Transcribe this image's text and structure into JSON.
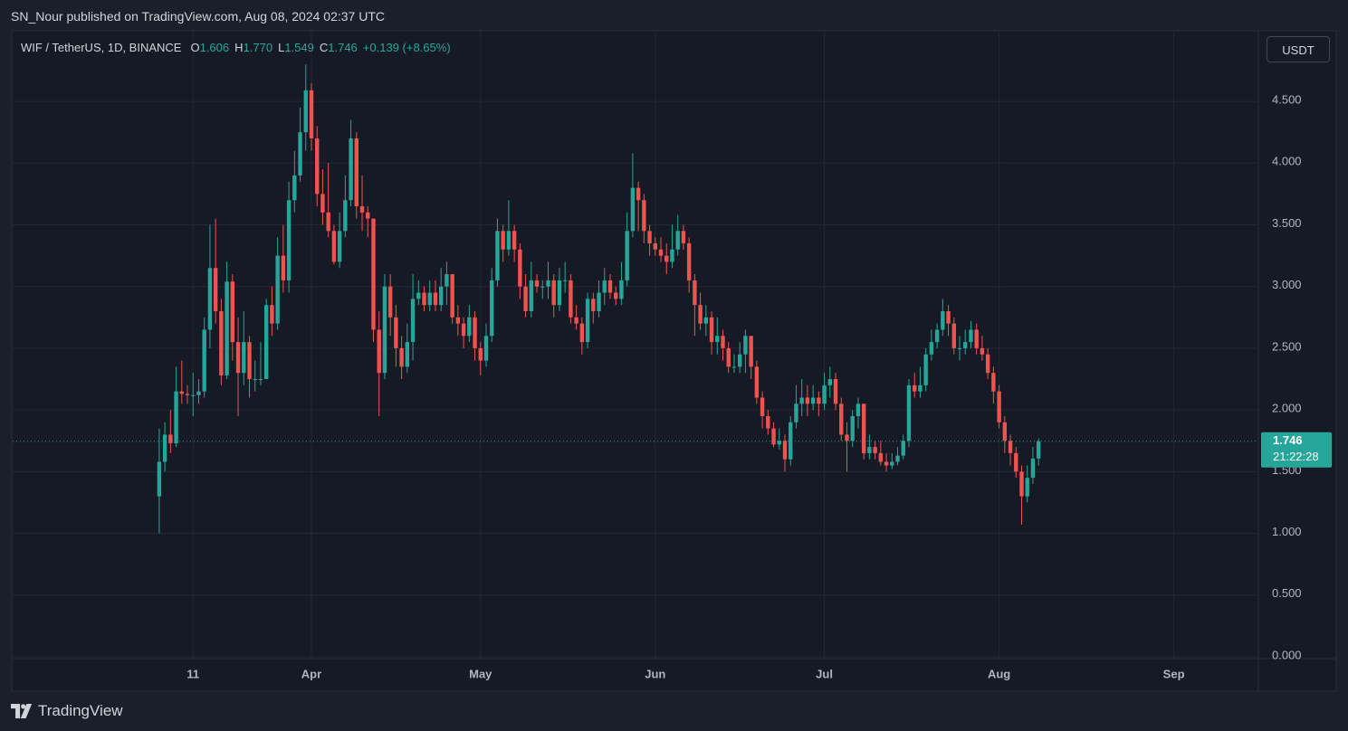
{
  "header": {
    "text": "SN_Nour published on TradingView.com, Aug 08, 2024 02:37 UTC"
  },
  "footer": {
    "logo_text": "TradingView"
  },
  "chart_data": {
    "type": "candlestick",
    "title": "WIF / TetherUS, 1D, BINANCE",
    "ohlc_legend": {
      "open_label": "O",
      "open": "1.606",
      "high_label": "H",
      "high": "1.770",
      "low_label": "L",
      "low": "1.549",
      "close_label": "C",
      "close": "1.746",
      "change": "+0.139 (+8.65%)"
    },
    "currency": "USDT",
    "last_price": 1.746,
    "countdown": "21:22:28",
    "up_color": "#26a69a",
    "down_color": "#ef5350",
    "grid": true,
    "xlim": [
      "Feb 8",
      "Sep 16"
    ],
    "xticks": [
      {
        "value": "Mar 11",
        "label": "11"
      },
      {
        "value": "Apr 1",
        "label": "Apr"
      },
      {
        "value": "May 1",
        "label": "May"
      },
      {
        "value": "Jun 1",
        "label": "Jun"
      },
      {
        "value": "Jul 1",
        "label": "Jul"
      },
      {
        "value": "Aug 1",
        "label": "Aug"
      },
      {
        "value": "Sep 1",
        "label": "Sep"
      }
    ],
    "ylim": [
      -0.015,
      5.065
    ],
    "yticks": [
      {
        "value": 0,
        "label": "0.000"
      },
      {
        "value": 0.5,
        "label": "0.500"
      },
      {
        "value": 1,
        "label": "1.000"
      },
      {
        "value": 1.5,
        "label": "1.500"
      },
      {
        "value": 2,
        "label": "2.000"
      },
      {
        "value": 2.5,
        "label": "2.500"
      },
      {
        "value": 3,
        "label": "3.000"
      },
      {
        "value": 3.5,
        "label": "3.500"
      },
      {
        "value": 4,
        "label": "4.000"
      },
      {
        "value": 4.5,
        "label": "4.500"
      }
    ],
    "x": [
      "Mar 5",
      "Mar 6",
      "Mar 7",
      "Mar 8",
      "Mar 9",
      "Mar 10",
      "Mar 11",
      "Mar 12",
      "Mar 13",
      "Mar 14",
      "Mar 15",
      "Mar 16",
      "Mar 17",
      "Mar 18",
      "Mar 19",
      "Mar 20",
      "Mar 21",
      "Mar 22",
      "Mar 23",
      "Mar 24",
      "Mar 25",
      "Mar 26",
      "Mar 27",
      "Mar 28",
      "Mar 29",
      "Mar 30",
      "Mar 31",
      "Apr 1",
      "Apr 2",
      "Apr 3",
      "Apr 4",
      "Apr 5",
      "Apr 6",
      "Apr 7",
      "Apr 8",
      "Apr 9",
      "Apr 10",
      "Apr 11",
      "Apr 12",
      "Apr 13",
      "Apr 14",
      "Apr 15",
      "Apr 16",
      "Apr 17",
      "Apr 18",
      "Apr 19",
      "Apr 20",
      "Apr 21",
      "Apr 22",
      "Apr 23",
      "Apr 24",
      "Apr 25",
      "Apr 26",
      "Apr 27",
      "Apr 28",
      "Apr 29",
      "Apr 30",
      "May 1",
      "May 2",
      "May 3",
      "May 4",
      "May 5",
      "May 6",
      "May 7",
      "May 8",
      "May 9",
      "May 10",
      "May 11",
      "May 12",
      "May 13",
      "May 14",
      "May 15",
      "May 16",
      "May 17",
      "May 18",
      "May 19",
      "May 20",
      "May 21",
      "May 22",
      "May 23",
      "May 24",
      "May 25",
      "May 26",
      "May 27",
      "May 28",
      "May 29",
      "May 30",
      "May 31",
      "Jun 1",
      "Jun 2",
      "Jun 3",
      "Jun 4",
      "Jun 5",
      "Jun 6",
      "Jun 7",
      "Jun 8",
      "Jun 9",
      "Jun 10",
      "Jun 11",
      "Jun 12",
      "Jun 13",
      "Jun 14",
      "Jun 15",
      "Jun 16",
      "Jun 17",
      "Jun 18",
      "Jun 19",
      "Jun 20",
      "Jun 21",
      "Jun 22",
      "Jun 23",
      "Jun 24",
      "Jun 25",
      "Jun 26",
      "Jun 27",
      "Jun 28",
      "Jun 29",
      "Jun 30",
      "Jul 1",
      "Jul 2",
      "Jul 3",
      "Jul 4",
      "Jul 5",
      "Jul 6",
      "Jul 7",
      "Jul 8",
      "Jul 9",
      "Jul 10",
      "Jul 11",
      "Jul 12",
      "Jul 13",
      "Jul 14",
      "Jul 15",
      "Jul 16",
      "Jul 17",
      "Jul 18",
      "Jul 19",
      "Jul 20",
      "Jul 21",
      "Jul 22",
      "Jul 23",
      "Jul 24",
      "Jul 25",
      "Jul 26",
      "Jul 27",
      "Jul 28",
      "Jul 29",
      "Jul 30",
      "Jul 31",
      "Aug 1",
      "Aug 2",
      "Aug 3",
      "Aug 4",
      "Aug 5",
      "Aug 6",
      "Aug 7",
      "Aug 8"
    ],
    "open": [
      1.3,
      1.58,
      1.8,
      1.73,
      2.15,
      2.13,
      2.12,
      2.12,
      2.15,
      2.65,
      3.15,
      2.8,
      2.28,
      3.04,
      2.55,
      2.3,
      2.55,
      2.25,
      2.25,
      2.25,
      2.85,
      2.7,
      3.25,
      3.05,
      3.7,
      3.9,
      4.25,
      4.59,
      4.2,
      3.75,
      3.6,
      3.45,
      3.2,
      3.45,
      3.7,
      4.2,
      3.65,
      3.6,
      3.55,
      2.65,
      2.3,
      3.0,
      2.75,
      2.5,
      2.35,
      2.55,
      2.9,
      2.95,
      2.85,
      2.95,
      2.85,
      3.0,
      3.1,
      2.75,
      2.7,
      2.6,
      2.75,
      2.5,
      2.4,
      2.6,
      3.05,
      3.45,
      3.3,
      3.45,
      3.3,
      3.0,
      2.8,
      3.05,
      3.0,
      3.0,
      3.05,
      2.85,
      3.05,
      3.05,
      2.75,
      2.7,
      2.55,
      2.9,
      2.8,
      2.95,
      3.05,
      2.95,
      2.9,
      3.05,
      3.45,
      3.8,
      3.7,
      3.45,
      3.35,
      3.3,
      3.25,
      3.2,
      3.3,
      3.45,
      3.35,
      3.05,
      2.85,
      2.7,
      2.75,
      2.55,
      2.6,
      2.5,
      2.35,
      2.35,
      2.45,
      2.6,
      2.35,
      2.1,
      1.95,
      1.85,
      1.72,
      1.75,
      1.6,
      1.9,
      2.05,
      2.1,
      2.05,
      2.1,
      2.05,
      2.2,
      2.25,
      2.05,
      1.8,
      1.75,
      1.95,
      2.05,
      1.65,
      1.7,
      1.65,
      1.58,
      1.55,
      1.58,
      1.63,
      1.75,
      2.2,
      2.15,
      2.2,
      2.45,
      2.55,
      2.65,
      2.8,
      2.7,
      2.5,
      2.5,
      2.55,
      2.65,
      2.5,
      2.45,
      2.3,
      2.15,
      1.9,
      1.75,
      1.65,
      1.5,
      1.3,
      1.45,
      1.606
    ],
    "high": [
      1.85,
      1.9,
      2.0,
      2.35,
      2.4,
      2.2,
      2.3,
      2.25,
      2.75,
      3.5,
      3.55,
      2.9,
      3.2,
      3.1,
      2.75,
      2.8,
      2.6,
      2.4,
      2.55,
      2.9,
      3.0,
      3.4,
      3.5,
      3.85,
      4.1,
      4.45,
      4.8,
      4.65,
      4.3,
      3.95,
      4.0,
      3.5,
      3.6,
      3.9,
      4.35,
      4.25,
      3.9,
      3.65,
      3.55,
      2.8,
      3.1,
      3.1,
      2.85,
      2.6,
      2.7,
      3.1,
      3.05,
      3.0,
      3.05,
      3.05,
      3.15,
      3.2,
      3.1,
      2.85,
      2.75,
      2.85,
      2.8,
      2.55,
      2.7,
      3.15,
      3.55,
      3.5,
      3.7,
      3.5,
      3.35,
      3.1,
      3.2,
      3.1,
      3.05,
      3.2,
      3.1,
      3.15,
      3.2,
      3.1,
      2.85,
      2.75,
      2.95,
      2.95,
      3.05,
      3.15,
      3.1,
      3.0,
      3.2,
      3.6,
      4.08,
      3.85,
      3.75,
      3.5,
      3.4,
      3.4,
      3.35,
      3.5,
      3.58,
      3.5,
      3.4,
      3.1,
      2.95,
      2.85,
      2.8,
      2.75,
      2.65,
      2.55,
      2.45,
      2.55,
      2.65,
      2.6,
      2.4,
      2.15,
      2.0,
      1.9,
      1.85,
      1.8,
      1.95,
      2.2,
      2.25,
      2.2,
      2.2,
      2.15,
      2.3,
      2.35,
      2.3,
      2.1,
      1.9,
      2.0,
      2.1,
      2.05,
      1.8,
      1.75,
      1.75,
      1.65,
      1.65,
      1.7,
      1.8,
      2.25,
      2.3,
      2.35,
      2.5,
      2.65,
      2.7,
      2.9,
      2.85,
      2.75,
      2.6,
      2.65,
      2.72,
      2.7,
      2.6,
      2.5,
      2.35,
      2.2,
      1.95,
      1.8,
      1.7,
      1.55,
      1.55,
      1.7,
      1.77
    ],
    "low": [
      1.0,
      1.5,
      1.65,
      1.7,
      2.05,
      2.05,
      1.95,
      2.05,
      2.1,
      2.5,
      2.7,
      2.2,
      2.25,
      2.4,
      1.95,
      2.2,
      2.1,
      2.15,
      2.2,
      2.25,
      2.6,
      2.65,
      2.95,
      2.95,
      3.6,
      3.85,
      4.1,
      4.1,
      3.65,
      3.5,
      3.4,
      3.18,
      3.15,
      3.4,
      3.65,
      3.55,
      3.45,
      3.4,
      2.55,
      1.95,
      2.25,
      2.6,
      2.35,
      2.25,
      2.3,
      2.4,
      2.85,
      2.8,
      2.8,
      2.8,
      2.8,
      2.85,
      2.7,
      2.6,
      2.5,
      2.55,
      2.4,
      2.28,
      2.35,
      2.55,
      3.0,
      3.2,
      3.25,
      3.2,
      2.9,
      2.75,
      2.75,
      2.95,
      2.9,
      2.9,
      2.75,
      2.8,
      2.95,
      2.7,
      2.65,
      2.45,
      2.5,
      2.7,
      2.75,
      2.85,
      2.9,
      2.85,
      2.85,
      3.0,
      3.4,
      3.45,
      3.35,
      3.25,
      3.25,
      3.2,
      3.1,
      3.15,
      3.25,
      3.3,
      2.95,
      2.6,
      2.65,
      2.6,
      2.45,
      2.45,
      2.4,
      2.3,
      2.3,
      2.3,
      2.3,
      2.25,
      2.05,
      1.85,
      1.8,
      1.7,
      1.68,
      1.5,
      1.55,
      1.85,
      1.95,
      1.95,
      2.0,
      1.95,
      2.0,
      2.1,
      2.0,
      1.75,
      1.5,
      1.7,
      1.85,
      1.6,
      1.6,
      1.6,
      1.55,
      1.5,
      1.52,
      1.55,
      1.6,
      1.7,
      2.1,
      2.1,
      2.15,
      2.4,
      2.5,
      2.6,
      2.6,
      2.45,
      2.4,
      2.45,
      2.5,
      2.45,
      2.4,
      2.25,
      2.05,
      1.85,
      1.65,
      1.55,
      1.45,
      1.07,
      1.25,
      1.4,
      1.549
    ],
    "close": [
      1.58,
      1.8,
      1.73,
      2.15,
      2.13,
      2.12,
      2.12,
      2.15,
      2.65,
      3.15,
      2.8,
      2.28,
      3.04,
      2.55,
      2.3,
      2.55,
      2.25,
      2.25,
      2.25,
      2.85,
      2.7,
      3.25,
      3.05,
      3.7,
      3.9,
      4.25,
      4.59,
      4.2,
      3.75,
      3.6,
      3.45,
      3.2,
      3.45,
      3.7,
      4.2,
      3.65,
      3.6,
      3.55,
      2.65,
      2.3,
      3.0,
      2.75,
      2.5,
      2.35,
      2.55,
      2.9,
      2.95,
      2.85,
      2.95,
      2.85,
      3.0,
      3.1,
      2.75,
      2.7,
      2.6,
      2.75,
      2.5,
      2.4,
      2.6,
      3.05,
      3.45,
      3.3,
      3.45,
      3.3,
      3.0,
      2.8,
      3.05,
      3.0,
      3.0,
      3.05,
      2.85,
      3.05,
      3.05,
      2.75,
      2.7,
      2.55,
      2.9,
      2.8,
      2.95,
      3.05,
      2.95,
      2.9,
      3.05,
      3.45,
      3.8,
      3.7,
      3.45,
      3.35,
      3.3,
      3.25,
      3.2,
      3.3,
      3.45,
      3.35,
      3.05,
      2.85,
      2.7,
      2.75,
      2.55,
      2.6,
      2.5,
      2.35,
      2.35,
      2.45,
      2.6,
      2.35,
      2.1,
      1.95,
      1.85,
      1.72,
      1.75,
      1.6,
      1.9,
      2.05,
      2.1,
      2.05,
      2.1,
      2.05,
      2.2,
      2.25,
      2.05,
      1.8,
      1.75,
      1.95,
      2.05,
      1.65,
      1.7,
      1.65,
      1.58,
      1.55,
      1.58,
      1.63,
      1.75,
      2.2,
      2.15,
      2.2,
      2.45,
      2.55,
      2.65,
      2.8,
      2.7,
      2.5,
      2.5,
      2.55,
      2.65,
      2.5,
      2.45,
      2.3,
      2.15,
      1.9,
      1.75,
      1.65,
      1.5,
      1.3,
      1.45,
      1.606,
      1.746
    ]
  }
}
